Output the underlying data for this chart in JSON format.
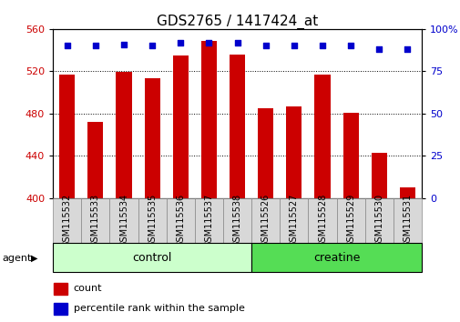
{
  "title": "GDS2765 / 1417424_at",
  "categories": [
    "GSM115532",
    "GSM115533",
    "GSM115534",
    "GSM115535",
    "GSM115536",
    "GSM115537",
    "GSM115538",
    "GSM115526",
    "GSM115527",
    "GSM115528",
    "GSM115529",
    "GSM115530",
    "GSM115531"
  ],
  "counts": [
    517,
    472,
    519,
    513,
    535,
    549,
    536,
    485,
    487,
    517,
    481,
    443,
    410
  ],
  "percentiles": [
    90,
    90,
    91,
    90,
    92,
    92,
    92,
    90,
    90,
    90,
    90,
    88,
    88
  ],
  "groups": [
    {
      "label": "control",
      "start": 0,
      "end": 7,
      "color": "#ccffcc"
    },
    {
      "label": "creatine",
      "start": 7,
      "end": 13,
      "color": "#55dd55"
    }
  ],
  "ylim_left": [
    400,
    560
  ],
  "ylim_right": [
    0,
    100
  ],
  "yticks_left": [
    400,
    440,
    480,
    520,
    560
  ],
  "yticks_right": [
    0,
    25,
    50,
    75,
    100
  ],
  "ytick_right_labels": [
    "0",
    "25",
    "50",
    "75",
    "100%"
  ],
  "bar_color": "#cc0000",
  "dot_color": "#0000cc",
  "bar_width": 0.55,
  "agent_label": "agent",
  "legend_count_label": "count",
  "legend_pct_label": "percentile rank within the sample",
  "title_fontsize": 11,
  "tick_fontsize": 8,
  "group_label_fontsize": 9,
  "cat_fontsize": 7,
  "legend_fontsize": 8
}
